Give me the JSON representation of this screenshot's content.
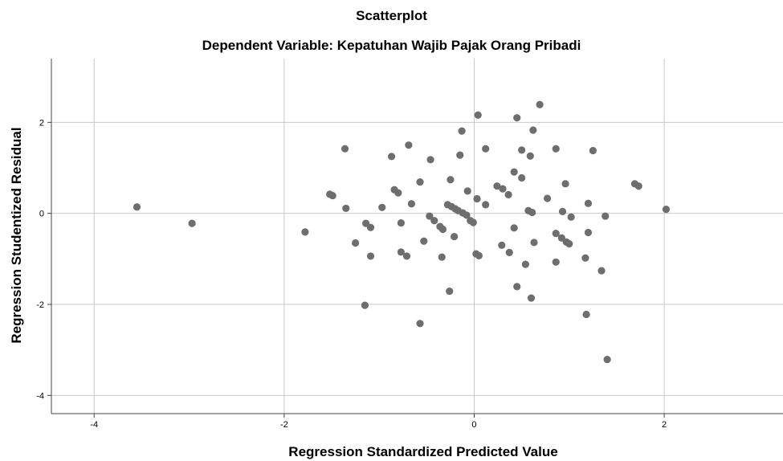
{
  "chart_data": {
    "type": "scatter",
    "title": "Scatterplot",
    "subtitle": "Dependent Variable: Kepatuhan Wajib Pajak Orang Pribadi",
    "xlabel": "Regression Standardized Predicted Value",
    "ylabel": "Regression Studentized Residual",
    "xlim": [
      -4.45,
      3.25
    ],
    "ylim": [
      -4.4,
      3.4
    ],
    "xticks": [
      -4,
      -2,
      0,
      2
    ],
    "yticks": [
      -4,
      -2,
      0,
      2
    ],
    "grid": true,
    "point_color": "#6e6e6e",
    "points": [
      [
        -3.55,
        0.14
      ],
      [
        -2.97,
        -0.22
      ],
      [
        -1.78,
        -0.41
      ],
      [
        -1.52,
        0.42
      ],
      [
        -1.49,
        0.39
      ],
      [
        -1.36,
        1.42
      ],
      [
        -1.35,
        0.11
      ],
      [
        -1.25,
        -0.65
      ],
      [
        -1.15,
        -2.02
      ],
      [
        -1.14,
        -0.22
      ],
      [
        -1.09,
        -0.31
      ],
      [
        -1.09,
        -0.94
      ],
      [
        -0.97,
        0.13
      ],
      [
        -0.87,
        1.25
      ],
      [
        -0.84,
        0.52
      ],
      [
        -0.8,
        0.45
      ],
      [
        -0.77,
        -0.21
      ],
      [
        -0.77,
        -0.85
      ],
      [
        -0.71,
        -0.94
      ],
      [
        -0.69,
        1.5
      ],
      [
        -0.66,
        0.21
      ],
      [
        -0.57,
        0.69
      ],
      [
        -0.57,
        -2.42
      ],
      [
        -0.53,
        -0.61
      ],
      [
        -0.47,
        -0.06
      ],
      [
        -0.46,
        1.18
      ],
      [
        -0.42,
        -0.16
      ],
      [
        -0.36,
        -0.29
      ],
      [
        -0.34,
        -0.96
      ],
      [
        -0.33,
        -0.35
      ],
      [
        -0.28,
        0.19
      ],
      [
        -0.26,
        -1.71
      ],
      [
        -0.25,
        0.74
      ],
      [
        -0.24,
        0.15
      ],
      [
        -0.21,
        -0.51
      ],
      [
        -0.2,
        0.1
      ],
      [
        -0.17,
        0.06
      ],
      [
        -0.15,
        1.28
      ],
      [
        -0.13,
        1.81
      ],
      [
        -0.12,
        0.01
      ],
      [
        -0.08,
        -0.04
      ],
      [
        -0.07,
        0.49
      ],
      [
        -0.04,
        -0.16
      ],
      [
        -0.01,
        -0.2
      ],
      [
        0.02,
        -0.89
      ],
      [
        0.03,
        0.32
      ],
      [
        0.04,
        2.16
      ],
      [
        0.05,
        -0.93
      ],
      [
        0.12,
        0.19
      ],
      [
        0.12,
        1.42
      ],
      [
        0.24,
        0.6
      ],
      [
        0.29,
        -0.7
      ],
      [
        0.3,
        0.54
      ],
      [
        0.36,
        0.41
      ],
      [
        0.37,
        -0.86
      ],
      [
        0.42,
        -0.32
      ],
      [
        0.42,
        0.91
      ],
      [
        0.45,
        2.1
      ],
      [
        0.45,
        -1.61
      ],
      [
        0.5,
        1.39
      ],
      [
        0.5,
        0.78
      ],
      [
        0.54,
        -1.12
      ],
      [
        0.57,
        0.06
      ],
      [
        0.59,
        1.26
      ],
      [
        0.6,
        -1.86
      ],
      [
        0.61,
        0.02
      ],
      [
        0.62,
        1.83
      ],
      [
        0.63,
        -0.64
      ],
      [
        0.69,
        2.39
      ],
      [
        0.77,
        0.33
      ],
      [
        0.86,
        1.42
      ],
      [
        0.86,
        -1.07
      ],
      [
        0.86,
        -0.44
      ],
      [
        0.92,
        -0.54
      ],
      [
        0.93,
        0.04
      ],
      [
        0.96,
        0.65
      ],
      [
        0.97,
        -0.63
      ],
      [
        1.0,
        -0.67
      ],
      [
        1.02,
        -0.08
      ],
      [
        1.17,
        -0.98
      ],
      [
        1.18,
        -2.22
      ],
      [
        1.2,
        0.22
      ],
      [
        1.2,
        -0.42
      ],
      [
        1.25,
        1.38
      ],
      [
        1.34,
        -1.26
      ],
      [
        1.38,
        -0.06
      ],
      [
        1.4,
        -3.21
      ],
      [
        1.69,
        0.65
      ],
      [
        1.73,
        0.6
      ],
      [
        2.02,
        0.09
      ]
    ]
  }
}
